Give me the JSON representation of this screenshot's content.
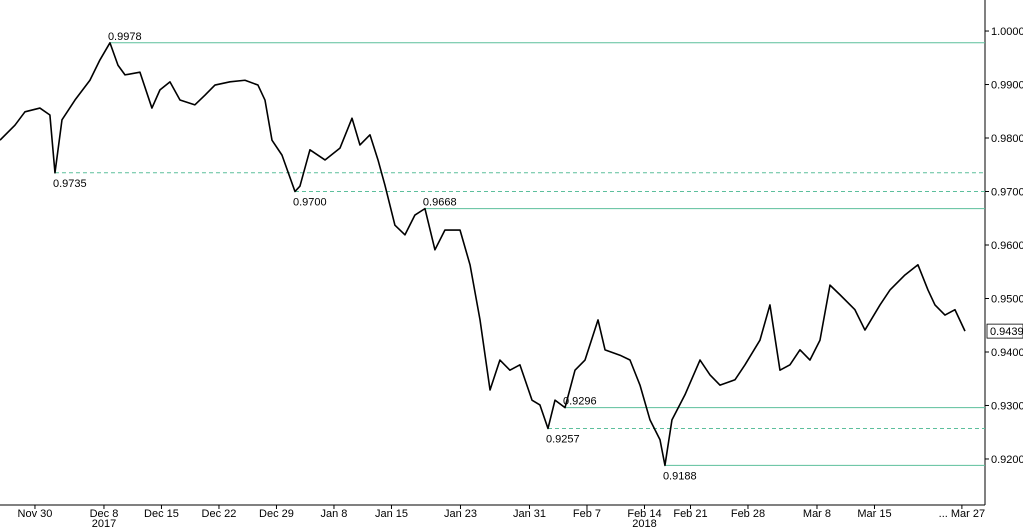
{
  "chart_data": {
    "type": "line",
    "x": [
      -3.04,
      -1.74,
      -0.87,
      0.43,
      1.3,
      1.74,
      2.35,
      3.48,
      4.78,
      5.65,
      6.52,
      7.22,
      7.83,
      9.13,
      10.17,
      10.87,
      11.74,
      12.61,
      13.91,
      14.78,
      15.65,
      16.96,
      18.26,
      19.39,
      20,
      20.61,
      21.48,
      22.61,
      23.04,
      23.91,
      25.22,
      26.52,
      27.57,
      28.26,
      29.13,
      29.83,
      30.43,
      31.3,
      32.17,
      33.04,
      33.91,
      34.78,
      35.65,
      36.96,
      37.83,
      38.7,
      39.57,
      40.43,
      41.3,
      42.17,
      43.22,
      43.91,
      44.61,
      45.22,
      46.09,
      46.96,
      47.83,
      48.96,
      49.57,
      50.87,
      51.74,
      52.61,
      53.48,
      54.35,
      54.78,
      55.39,
      56.52,
      57.83,
      58.7,
      59.57,
      60.87,
      61.74,
      63.04,
      63.91,
      64.78,
      65.65,
      66.52,
      67.39,
      68.26,
      69.13,
      70,
      71.3,
      72.17,
      73.48,
      74.35,
      75.65,
      76.78,
      77.65,
      78.26,
      79.13,
      80,
      80.87
    ],
    "series": [
      {
        "color": "#000000",
        "values": [
          0.9796,
          0.9824,
          0.9849,
          0.9856,
          0.9843,
          0.9735,
          0.9834,
          0.9871,
          0.9908,
          0.9946,
          0.9978,
          0.9936,
          0.9918,
          0.9923,
          0.9856,
          0.989,
          0.9905,
          0.9871,
          0.9862,
          0.988,
          0.9899,
          0.9905,
          0.9908,
          0.9899,
          0.9871,
          0.9796,
          0.9768,
          0.97,
          0.971,
          0.9778,
          0.9759,
          0.9781,
          0.9837,
          0.9787,
          0.9806,
          0.9759,
          0.9712,
          0.9637,
          0.9619,
          0.9656,
          0.9668,
          0.9591,
          0.9628,
          0.9628,
          0.9563,
          0.946,
          0.9329,
          0.9385,
          0.9366,
          0.9376,
          0.931,
          0.9301,
          0.9257,
          0.931,
          0.9296,
          0.9366,
          0.9385,
          0.946,
          0.9404,
          0.9394,
          0.9385,
          0.9338,
          0.9273,
          0.9236,
          0.9188,
          0.9273,
          0.932,
          0.9385,
          0.9357,
          0.9338,
          0.9348,
          0.9376,
          0.9422,
          0.9488,
          0.9366,
          0.9376,
          0.9404,
          0.9385,
          0.9422,
          0.9525,
          0.9507,
          0.9479,
          0.9441,
          0.9488,
          0.9516,
          0.9544,
          0.9563,
          0.9516,
          0.9488,
          0.9469,
          0.9479,
          0.9439
        ]
      }
    ],
    "last_value_label": "0.9439",
    "xlim": [
      -3.04,
      82.61
    ],
    "ylim": [
      0.9142,
      1.0058
    ],
    "xticks": [
      {
        "value": 0,
        "label": "Nov 30"
      },
      {
        "value": 6,
        "label": "Dec 8"
      },
      {
        "value": 11,
        "label": "Dec 15"
      },
      {
        "value": 16,
        "label": "Dec 22"
      },
      {
        "value": 21,
        "label": "Dec 29"
      },
      {
        "value": 26,
        "label": "Jan 8"
      },
      {
        "value": 31,
        "label": "Jan 15"
      },
      {
        "value": 37,
        "label": "Jan 23"
      },
      {
        "value": 43,
        "label": "Jan 31"
      },
      {
        "value": 48,
        "label": "Feb 7"
      },
      {
        "value": 53,
        "label": "Feb 14"
      },
      {
        "value": 57,
        "label": "Feb 21"
      },
      {
        "value": 62,
        "label": "Feb 28"
      },
      {
        "value": 68,
        "label": "Mar 8"
      },
      {
        "value": 73,
        "label": "Mar 15"
      },
      {
        "value": 80.6,
        "label": "... Mar 27"
      }
    ],
    "year_labels": [
      {
        "value": 6,
        "label": "2017"
      },
      {
        "value": 53,
        "label": "2018"
      }
    ],
    "yticks": [
      {
        "value": 0.92,
        "label": "0.9200"
      },
      {
        "value": 0.93,
        "label": "0.9300"
      },
      {
        "value": 0.94,
        "label": "0.9400"
      },
      {
        "value": 0.95,
        "label": "0.9500"
      },
      {
        "value": 0.96,
        "label": "0.9600"
      },
      {
        "value": 0.97,
        "label": "0.9700"
      },
      {
        "value": 0.98,
        "label": "0.9800"
      },
      {
        "value": 0.99,
        "label": "0.9900"
      },
      {
        "value": 1,
        "label": "1.0000"
      }
    ],
    "levels": [
      {
        "value": 0.9978,
        "label": "0.9978",
        "x": 6.52,
        "dashed": false
      },
      {
        "value": 0.9735,
        "label": "0.9735",
        "x": 1.74,
        "dashed": true
      },
      {
        "value": 0.97,
        "label": "0.9700",
        "x": 22.61,
        "dashed": true
      },
      {
        "value": 0.9668,
        "label": "0.9668",
        "x": 33.91,
        "dashed": false
      },
      {
        "value": 0.9296,
        "label": "0.9296",
        "x": 46.09,
        "dashed": false
      },
      {
        "value": 0.9257,
        "label": "0.9257",
        "x": 44.61,
        "dashed": true
      },
      {
        "value": 0.9188,
        "label": "0.9188",
        "x": 54.78,
        "dashed": false
      }
    ],
    "level_color": "#5cbf9c"
  }
}
